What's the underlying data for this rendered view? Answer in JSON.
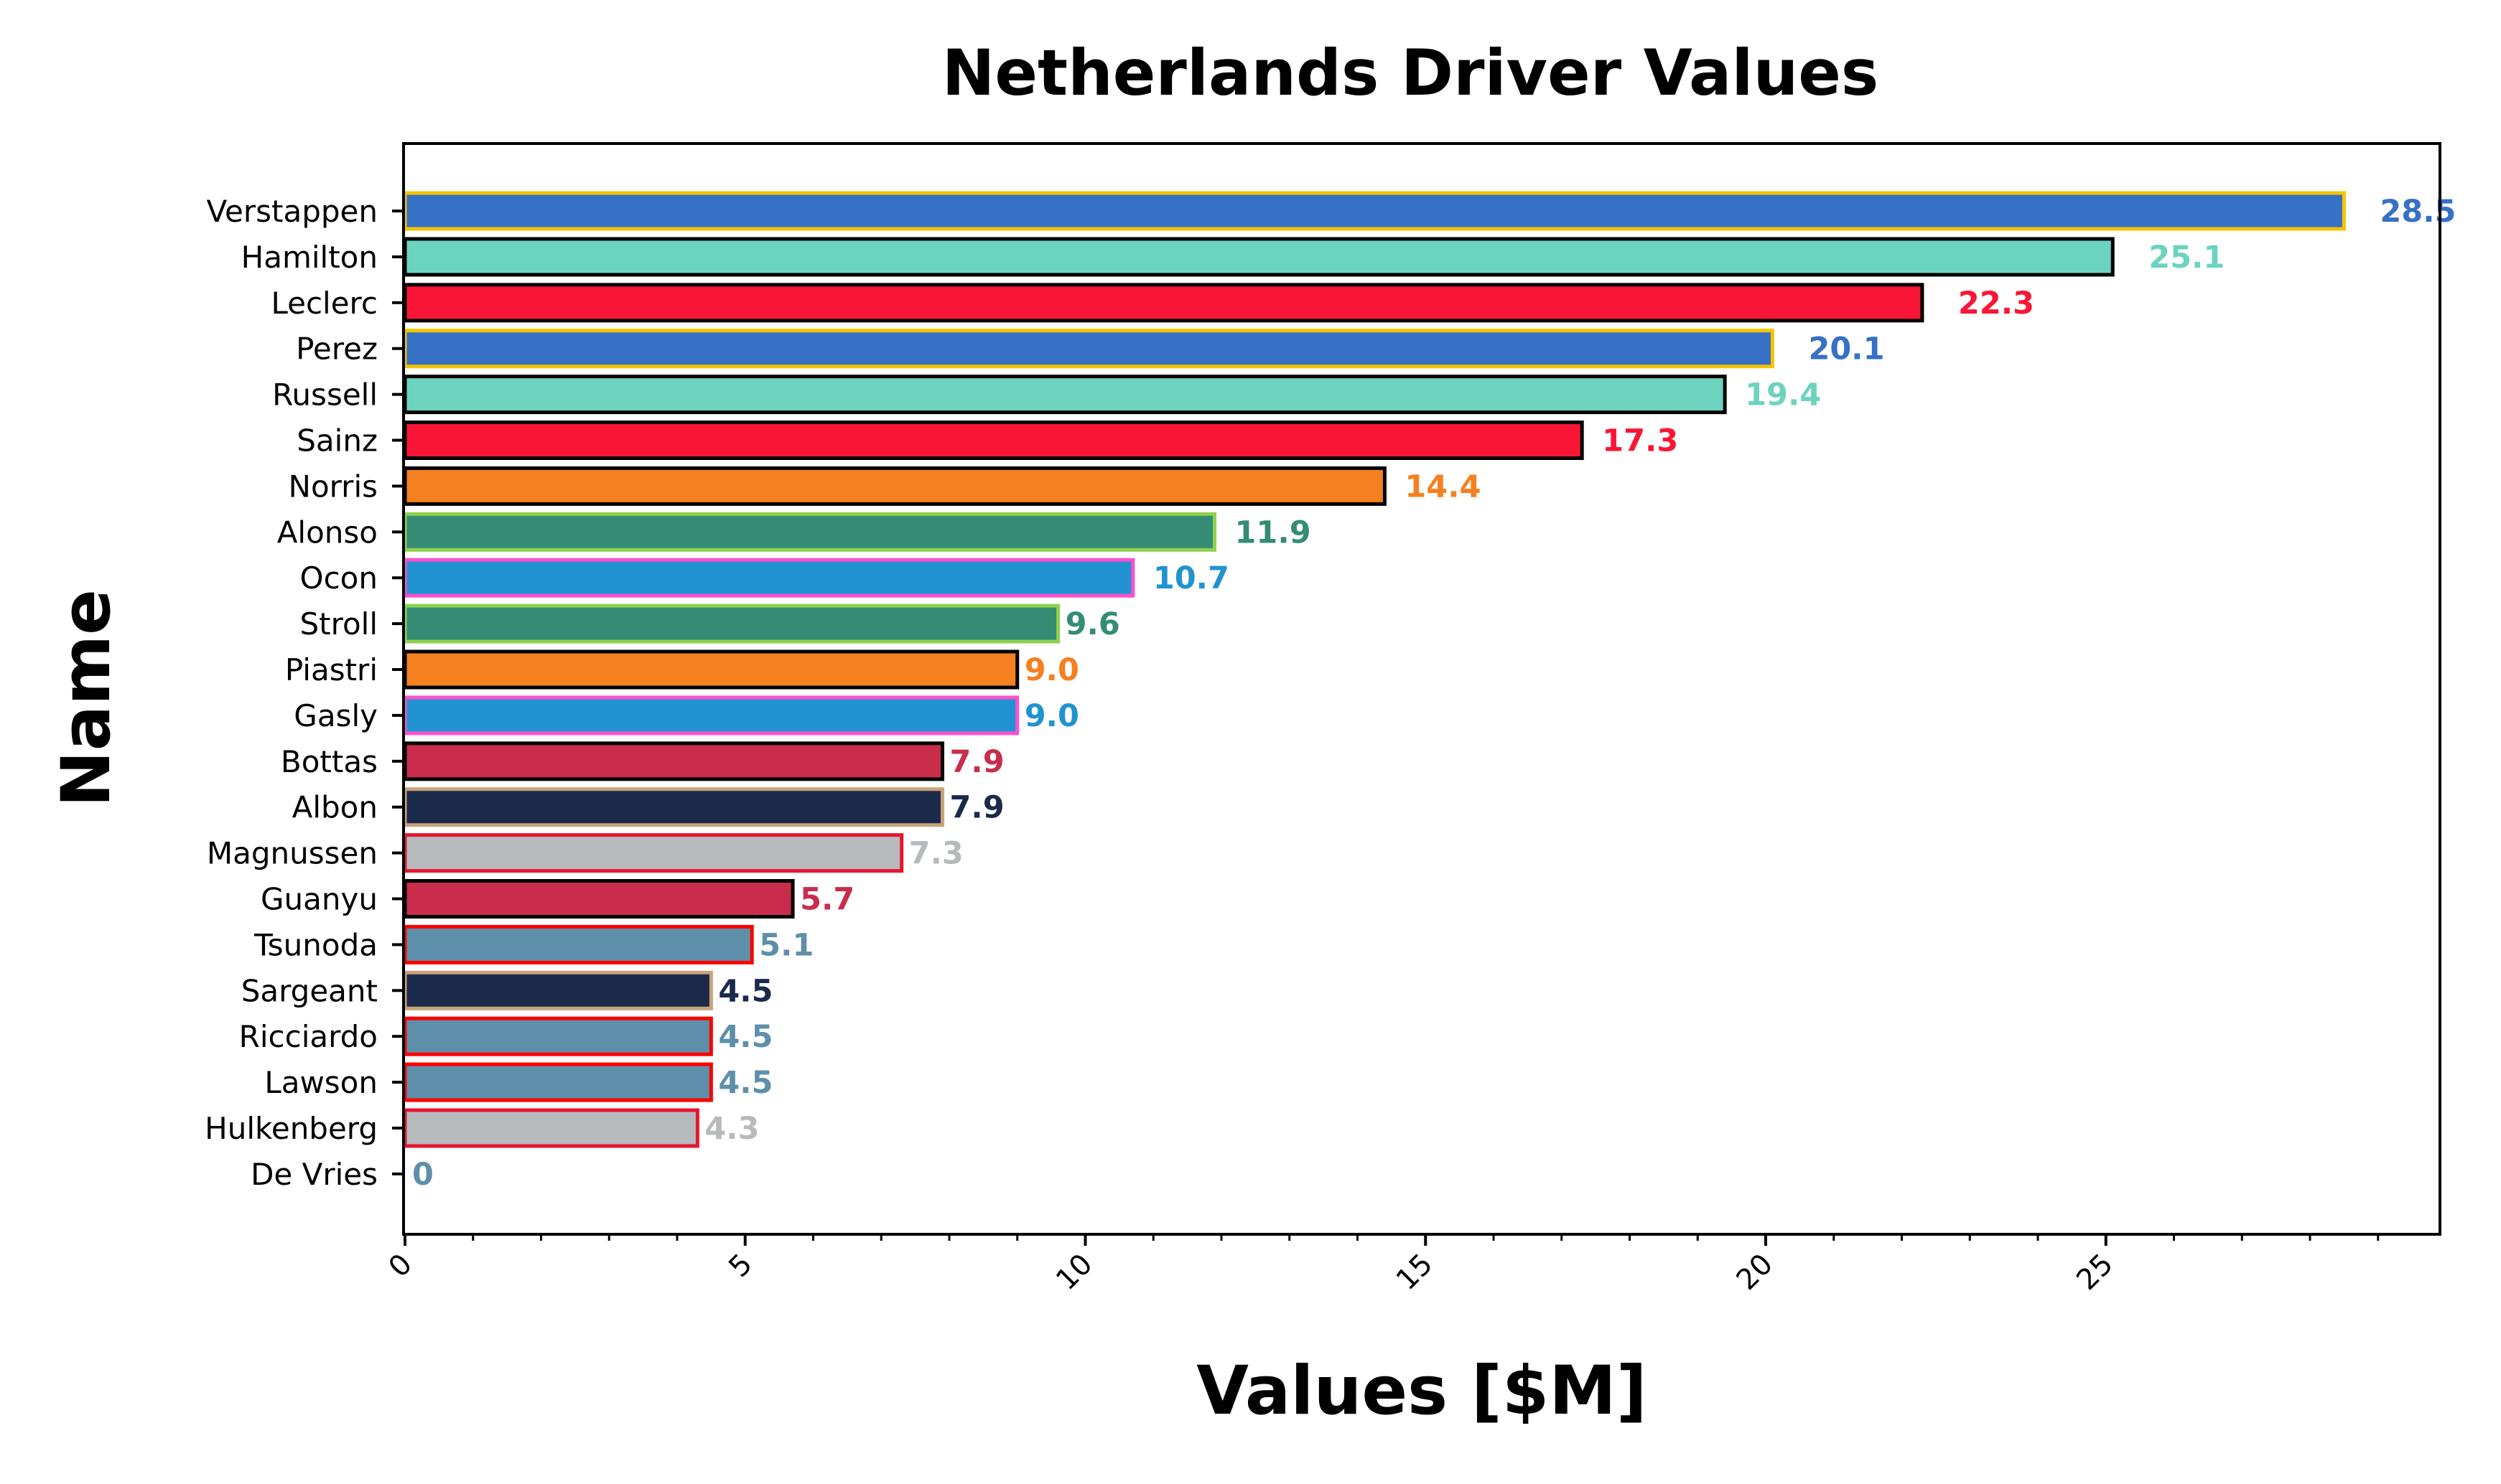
{
  "chart_data": {
    "type": "bar",
    "orientation": "horizontal",
    "title": "Netherlands Driver Values",
    "xlabel": "Values [$M]",
    "ylabel": "Name",
    "xlim": [
      0,
      30
    ],
    "x_ticks": [
      0,
      5,
      10,
      15,
      20,
      25
    ],
    "x_tick_labels": [
      "0",
      "5",
      "10",
      "15",
      "20",
      "25"
    ],
    "grid": false,
    "legend": "none",
    "bars": [
      {
        "name": "Verstappen",
        "value": 28.5,
        "label": "28.5",
        "fill": "#3671C6",
        "edge": "#F5C400",
        "label_color": "#3671C6"
      },
      {
        "name": "Hamilton",
        "value": 25.1,
        "label": "25.1",
        "fill": "#6CD3BF",
        "edge": "#000000",
        "label_color": "#6CD3BF"
      },
      {
        "name": "Leclerc",
        "value": 22.3,
        "label": "22.3",
        "fill": "#F91536",
        "edge": "#000000",
        "label_color": "#F91536"
      },
      {
        "name": "Perez",
        "value": 20.1,
        "label": "20.1",
        "fill": "#3671C6",
        "edge": "#F5C400",
        "label_color": "#3671C6"
      },
      {
        "name": "Russell",
        "value": 19.4,
        "label": "19.4",
        "fill": "#6CD3BF",
        "edge": "#000000",
        "label_color": "#6CD3BF"
      },
      {
        "name": "Sainz",
        "value": 17.3,
        "label": "17.3",
        "fill": "#F91536",
        "edge": "#000000",
        "label_color": "#F91536"
      },
      {
        "name": "Norris",
        "value": 14.4,
        "label": "14.4",
        "fill": "#F58020",
        "edge": "#000000",
        "label_color": "#F58020"
      },
      {
        "name": "Alonso",
        "value": 11.9,
        "label": "11.9",
        "fill": "#358C75",
        "edge": "#8FD14F",
        "label_color": "#358C75"
      },
      {
        "name": "Ocon",
        "value": 10.7,
        "label": "10.7",
        "fill": "#2293D1",
        "edge": "#FF4FCF",
        "label_color": "#2293D1"
      },
      {
        "name": "Stroll",
        "value": 9.6,
        "label": "9.6",
        "fill": "#358C75",
        "edge": "#8FD14F",
        "label_color": "#358C75"
      },
      {
        "name": "Piastri",
        "value": 9.0,
        "label": "9.0",
        "fill": "#F58020",
        "edge": "#000000",
        "label_color": "#F58020"
      },
      {
        "name": "Gasly",
        "value": 9.0,
        "label": "9.0",
        "fill": "#2293D1",
        "edge": "#FF4FCF",
        "label_color": "#2293D1"
      },
      {
        "name": "Bottas",
        "value": 7.9,
        "label": "7.9",
        "fill": "#C92D4B",
        "edge": "#000000",
        "label_color": "#C92D4B"
      },
      {
        "name": "Albon",
        "value": 7.9,
        "label": "7.9",
        "fill": "#1B2A4B",
        "edge": "#C8A27A",
        "label_color": "#1B2A4B"
      },
      {
        "name": "Magnussen",
        "value": 7.3,
        "label": "7.3",
        "fill": "#B6BABD",
        "edge": "#E8152D",
        "label_color": "#B6BABD"
      },
      {
        "name": "Guanyu",
        "value": 5.7,
        "label": "5.7",
        "fill": "#C92D4B",
        "edge": "#000000",
        "label_color": "#C92D4B"
      },
      {
        "name": "Tsunoda",
        "value": 5.1,
        "label": "5.1",
        "fill": "#5E8FAA",
        "edge": "#FF0000",
        "label_color": "#5E8FAA"
      },
      {
        "name": "Sargeant",
        "value": 4.5,
        "label": "4.5",
        "fill": "#1B2A4B",
        "edge": "#C8A27A",
        "label_color": "#1B2A4B"
      },
      {
        "name": "Ricciardo",
        "value": 4.5,
        "label": "4.5",
        "fill": "#5E8FAA",
        "edge": "#FF0000",
        "label_color": "#5E8FAA"
      },
      {
        "name": "Lawson",
        "value": 4.5,
        "label": "4.5",
        "fill": "#5E8FAA",
        "edge": "#FF0000",
        "label_color": "#5E8FAA"
      },
      {
        "name": "Hulkenberg",
        "value": 4.3,
        "label": "4.3",
        "fill": "#B6BABD",
        "edge": "#E8152D",
        "label_color": "#B6BABD"
      },
      {
        "name": "De Vries",
        "value": 0,
        "label": "0",
        "fill": "#5E8FAA",
        "edge": "#FF0000",
        "label_color": "#5E8FAA"
      }
    ]
  }
}
